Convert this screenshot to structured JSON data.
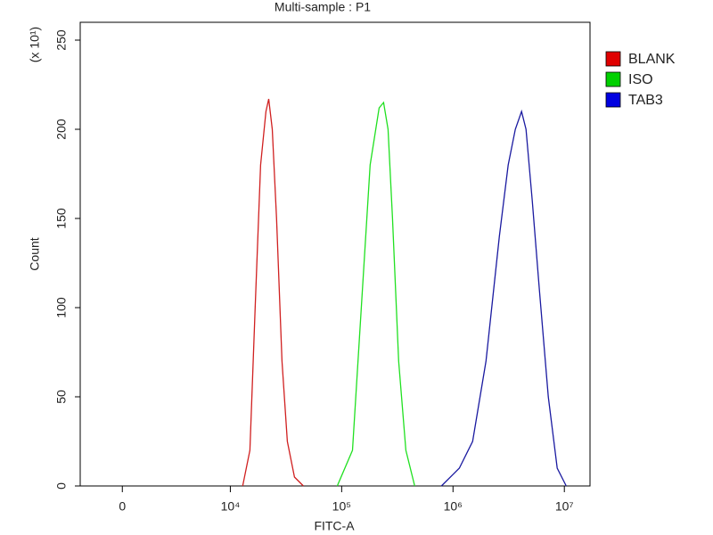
{
  "chart_data": {
    "type": "line",
    "title": "Multi-sample : P1",
    "xlabel": "FITC-A",
    "ylabel": "Count",
    "ylabel_scale": "(x 10¹)",
    "xscale": "symlog",
    "linthresh": 10000,
    "linscale": 0.97,
    "xlim": [
      -3900,
      17000000
    ],
    "xticks": [
      0,
      {
        "value": 10000,
        "label": "10⁴"
      },
      {
        "value": 100000,
        "label": "10⁵"
      },
      {
        "value": 1000000,
        "label": "10⁶"
      },
      {
        "value": 10000000,
        "label": "10⁷"
      }
    ],
    "ylim": [
      0,
      260
    ],
    "yticks": [
      0,
      50,
      100,
      150,
      200,
      250
    ],
    "series": [
      {
        "name": "BLANK",
        "color": "#d02020",
        "x": [
          12900,
          15000,
          16700,
          18700,
          20900,
          22100,
          23800,
          26000,
          29100,
          32500,
          37700,
          45300
        ],
        "values": [
          0,
          20,
          100,
          180,
          210,
          217,
          200,
          150,
          70,
          25,
          5,
          0
        ]
      },
      {
        "name": "ISO",
        "color": "#20e020",
        "x": [
          91200,
          125000,
          150000,
          180000,
          217000,
          238000,
          261000,
          286000,
          325000,
          377000,
          453000
        ],
        "values": [
          0,
          20,
          100,
          180,
          212,
          215,
          200,
          150,
          70,
          20,
          0
        ]
      },
      {
        "name": "TAB3",
        "color": "#1a1aa0",
        "x": [
          787000,
          1140000,
          1500000,
          1980000,
          2610000,
          3130000,
          3630000,
          4130000,
          4530000,
          5150000,
          5970000,
          7180000,
          8630000,
          10400000
        ],
        "values": [
          0,
          10,
          25,
          70,
          140,
          180,
          200,
          210,
          200,
          160,
          110,
          50,
          10,
          0
        ]
      }
    ],
    "legend_colors": [
      "#e00000",
      "#00d000",
      "#0000e0"
    ],
    "legend": "right"
  }
}
